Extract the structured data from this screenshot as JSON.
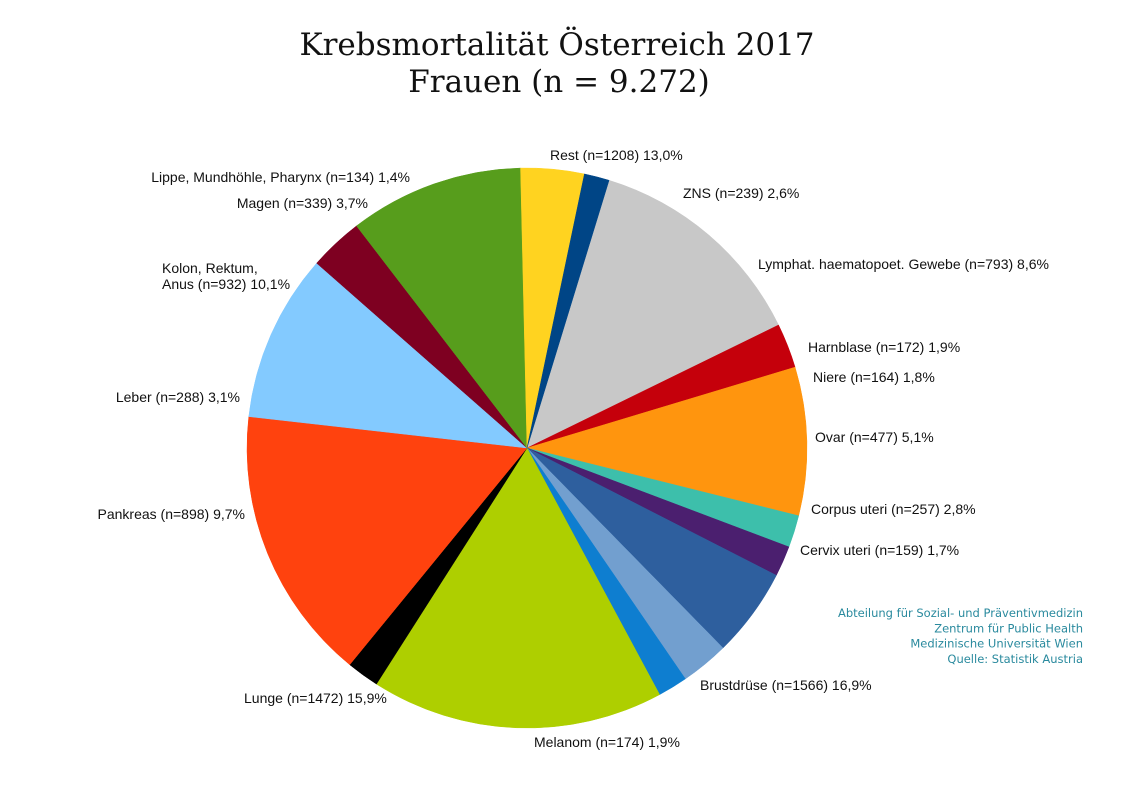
{
  "title": "Krebsmortalität Österreich 2017",
  "subtitle": "Frauen (n = 9.272)",
  "source": {
    "lines": [
      "Abteilung für Sozial- und Präventivmedizin",
      "Zentrum für Public Health",
      "Medizinische Universität Wien",
      "Quelle: Statistik Austria"
    ],
    "color": "#2a8a9e"
  },
  "chart_data": {
    "type": "pie",
    "total": 9272,
    "slices": [
      {
        "name": "Rest",
        "n": 1208,
        "percent": 13.0,
        "color": "#c8c8c8",
        "label": "Rest (n=1208) 13,0%"
      },
      {
        "name": "ZNS",
        "n": 239,
        "percent": 2.6,
        "color": "#c5000b",
        "label": "ZNS (n=239) 2,6%"
      },
      {
        "name": "Lymphat. haematopoet. Gewebe",
        "n": 793,
        "percent": 8.6,
        "color": "#ff950e",
        "label": "Lymphat. haematopoet. Gewebe (n=793) 8,6%"
      },
      {
        "name": "Harnblase",
        "n": 172,
        "percent": 1.9,
        "color": "#3dbfab",
        "label": "Harnblase (n=172) 1,9%"
      },
      {
        "name": "Niere",
        "n": 164,
        "percent": 1.8,
        "color": "#4b1f6f",
        "label": "Niere (n=164) 1,8%"
      },
      {
        "name": "Ovar",
        "n": 477,
        "percent": 5.1,
        "color": "#2e5f9e",
        "label": "Ovar (n=477) 5,1%"
      },
      {
        "name": "Corpus uteri",
        "n": 257,
        "percent": 2.8,
        "color": "#729fcf",
        "label": "Corpus uteri (n=257) 2,8%"
      },
      {
        "name": "Cervix uteri",
        "n": 159,
        "percent": 1.7,
        "color": "#0e7ed0",
        "label": "Cervix uteri (n=159) 1,7%"
      },
      {
        "name": "Brustdrüse",
        "n": 1566,
        "percent": 16.9,
        "color": "#aecf00",
        "label": "Brustdrüse (n=1566) 16,9%"
      },
      {
        "name": "Melanom",
        "n": 174,
        "percent": 1.9,
        "color": "#000000",
        "label": "Melanom (n=174) 1,9%"
      },
      {
        "name": "Lunge",
        "n": 1472,
        "percent": 15.9,
        "color": "#ff420e",
        "label": "Lunge (n=1472) 15,9%"
      },
      {
        "name": "Pankreas",
        "n": 898,
        "percent": 9.7,
        "color": "#83caff",
        "label": "Pankreas (n=898) 9,7%"
      },
      {
        "name": "Leber",
        "n": 288,
        "percent": 3.1,
        "color": "#7e0021",
        "label": "Leber (n=288) 3,1%"
      },
      {
        "name": "Kolon, Rektum, Anus",
        "n": 932,
        "percent": 10.1,
        "color": "#579d1c",
        "label": [
          "Kolon, Rektum,",
          "Anus (n=932) 10,1%"
        ]
      },
      {
        "name": "Magen",
        "n": 339,
        "percent": 3.7,
        "color": "#ffd320",
        "label": "Magen (n=339) 3,7%"
      },
      {
        "name": "Lippe, Mundhöhle, Pharynx",
        "n": 134,
        "percent": 1.4,
        "color": "#004586",
        "label": "Lippe, Mundhöhle, Pharynx (n=134) 1,4%"
      }
    ]
  }
}
